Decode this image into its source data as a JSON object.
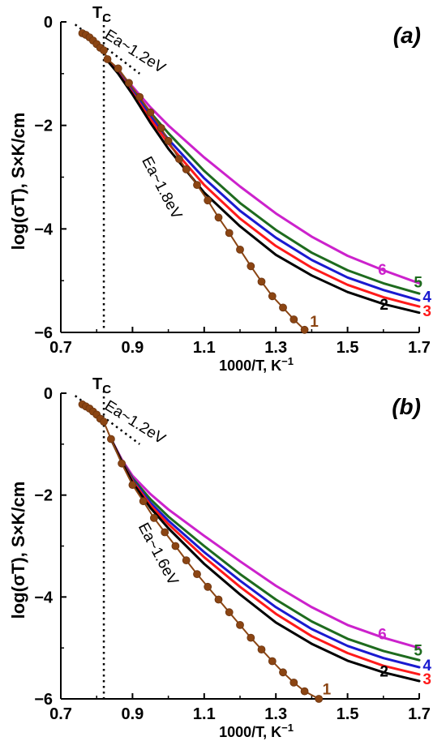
{
  "chart_data": [
    {
      "type": "line",
      "panel_label": "(a)",
      "xlabel": "1000/T, K",
      "xlabel_sup": "−1",
      "ylabel": "log(σT), S×K/cm",
      "xlim": [
        0.7,
        1.7
      ],
      "ylim": [
        -6,
        0
      ],
      "xticks": [
        "0.7",
        "0.9",
        "1.1",
        "1.3",
        "1.5",
        "1.7"
      ],
      "yticks": [
        "0",
        "−2",
        "−4",
        "−6"
      ],
      "tc_label": "T",
      "tc_sub": "C",
      "tc_x": 0.82,
      "annotations": [
        {
          "text": "Ea~1.2eV",
          "x": 0.9,
          "y": -0.65,
          "angle": 32
        },
        {
          "text": "Ea~1.8eV",
          "x": 0.97,
          "y": -3.25,
          "angle": 62
        }
      ],
      "ea_line": [
        [
          0.74,
          -0.05
        ],
        [
          0.92,
          -1.0
        ]
      ],
      "series": [
        {
          "name": "1",
          "color": "#8B4513",
          "markers": true,
          "x": [
            0.76,
            0.77,
            0.78,
            0.79,
            0.8,
            0.81,
            0.82,
            0.83,
            0.86,
            0.89,
            0.92,
            0.95,
            0.98,
            1.0,
            1.03,
            1.05,
            1.08,
            1.11,
            1.14,
            1.17,
            1.2,
            1.23,
            1.26,
            1.29,
            1.32,
            1.35,
            1.38
          ],
          "y": [
            -0.22,
            -0.25,
            -0.3,
            -0.36,
            -0.43,
            -0.5,
            -0.55,
            -0.72,
            -0.9,
            -1.18,
            -1.45,
            -1.75,
            -2.05,
            -2.3,
            -2.65,
            -2.85,
            -3.15,
            -3.45,
            -3.78,
            -4.08,
            -4.4,
            -4.72,
            -5.02,
            -5.3,
            -5.52,
            -5.75,
            -5.95
          ]
        },
        {
          "name": "2",
          "color": "#000000",
          "x": [
            0.83,
            0.86,
            0.9,
            0.95,
            1.0,
            1.1,
            1.2,
            1.3,
            1.4,
            1.5,
            1.6,
            1.7
          ],
          "y": [
            -0.75,
            -1.0,
            -1.4,
            -1.95,
            -2.45,
            -3.3,
            -3.95,
            -4.5,
            -4.9,
            -5.22,
            -5.45,
            -5.62
          ]
        },
        {
          "name": "3",
          "color": "#FF1A1A",
          "x": [
            0.83,
            0.86,
            0.9,
            0.95,
            1.0,
            1.1,
            1.2,
            1.3,
            1.4,
            1.5,
            1.6,
            1.7
          ],
          "y": [
            -0.75,
            -0.98,
            -1.37,
            -1.88,
            -2.35,
            -3.15,
            -3.8,
            -4.33,
            -4.75,
            -5.08,
            -5.32,
            -5.5
          ]
        },
        {
          "name": "4",
          "color": "#1A1AD0",
          "x": [
            0.83,
            0.86,
            0.9,
            0.95,
            1.0,
            1.1,
            1.2,
            1.3,
            1.4,
            1.5,
            1.6,
            1.7
          ],
          "y": [
            -0.75,
            -0.97,
            -1.34,
            -1.82,
            -2.27,
            -3.02,
            -3.65,
            -4.17,
            -4.6,
            -4.94,
            -5.18,
            -5.38
          ]
        },
        {
          "name": "5",
          "color": "#1E6B1E",
          "x": [
            0.83,
            0.86,
            0.9,
            0.95,
            1.0,
            1.1,
            1.2,
            1.3,
            1.4,
            1.5,
            1.6,
            1.7
          ],
          "y": [
            -0.75,
            -0.96,
            -1.3,
            -1.75,
            -2.15,
            -2.88,
            -3.5,
            -4.02,
            -4.46,
            -4.8,
            -5.05,
            -5.25
          ]
        },
        {
          "name": "6",
          "color": "#CC22CC",
          "x": [
            0.83,
            0.86,
            0.9,
            0.95,
            1.0,
            1.1,
            1.2,
            1.3,
            1.4,
            1.5,
            1.6,
            1.7
          ],
          "y": [
            -0.75,
            -0.95,
            -1.25,
            -1.65,
            -2.0,
            -2.62,
            -3.18,
            -3.7,
            -4.15,
            -4.52,
            -4.8,
            -5.05
          ]
        }
      ],
      "series_label_pos": [
        {
          "x": 1.395,
          "y": -5.78
        },
        {
          "x": 1.59,
          "y": -5.45
        },
        {
          "x": 1.71,
          "y": -5.58
        },
        {
          "x": 1.71,
          "y": -5.3
        },
        {
          "x": 1.685,
          "y": -5.02
        },
        {
          "x": 1.585,
          "y": -4.78
        }
      ]
    },
    {
      "type": "line",
      "panel_label": "(b)",
      "xlabel": "1000/T, K",
      "xlabel_sup": "−1",
      "ylabel": "log(σT), S×K/cm",
      "xlim": [
        0.7,
        1.7
      ],
      "ylim": [
        -6,
        0
      ],
      "xticks": [
        "0.7",
        "0.9",
        "1.1",
        "1.3",
        "1.5",
        "1.7"
      ],
      "yticks": [
        "0",
        "−2",
        "−4",
        "−6"
      ],
      "tc_label": "T",
      "tc_sub": "C",
      "tc_x": 0.82,
      "annotations": [
        {
          "text": "Ea~1.2eV",
          "x": 0.9,
          "y": -0.65,
          "angle": 32
        },
        {
          "text": "Ea~1.6eV",
          "x": 0.96,
          "y": -3.2,
          "angle": 62
        }
      ],
      "ea_line": [
        [
          0.74,
          -0.05
        ],
        [
          0.92,
          -1.0
        ]
      ],
      "series": [
        {
          "name": "1",
          "color": "#8B4513",
          "markers": true,
          "x": [
            0.76,
            0.77,
            0.78,
            0.79,
            0.8,
            0.81,
            0.82,
            0.84,
            0.87,
            0.9,
            0.93,
            0.96,
            0.99,
            1.02,
            1.05,
            1.08,
            1.11,
            1.14,
            1.17,
            1.2,
            1.23,
            1.26,
            1.29,
            1.32,
            1.35,
            1.38,
            1.42
          ],
          "y": [
            -0.22,
            -0.26,
            -0.3,
            -0.36,
            -0.42,
            -0.5,
            -0.56,
            -0.9,
            -1.38,
            -1.8,
            -2.12,
            -2.45,
            -2.73,
            -3.0,
            -3.28,
            -3.55,
            -3.8,
            -4.05,
            -4.3,
            -4.55,
            -4.8,
            -5.03,
            -5.26,
            -5.48,
            -5.68,
            -5.85,
            -6.0
          ]
        },
        {
          "name": "2",
          "color": "#000000",
          "x": [
            0.84,
            0.87,
            0.9,
            0.95,
            1.0,
            1.1,
            1.2,
            1.3,
            1.4,
            1.5,
            1.6,
            1.7
          ],
          "y": [
            -0.9,
            -1.35,
            -1.75,
            -2.25,
            -2.65,
            -3.35,
            -3.95,
            -4.5,
            -4.92,
            -5.25,
            -5.48,
            -5.65
          ]
        },
        {
          "name": "3",
          "color": "#FF1A1A",
          "x": [
            0.84,
            0.87,
            0.9,
            0.95,
            1.0,
            1.1,
            1.2,
            1.3,
            1.4,
            1.5,
            1.6,
            1.7
          ],
          "y": [
            -0.9,
            -1.34,
            -1.72,
            -2.2,
            -2.57,
            -3.22,
            -3.8,
            -4.33,
            -4.77,
            -5.1,
            -5.35,
            -5.52
          ]
        },
        {
          "name": "4",
          "color": "#1A1AD0",
          "x": [
            0.84,
            0.87,
            0.9,
            0.95,
            1.0,
            1.1,
            1.2,
            1.3,
            1.4,
            1.5,
            1.6,
            1.7
          ],
          "y": [
            -0.9,
            -1.33,
            -1.7,
            -2.15,
            -2.5,
            -3.12,
            -3.68,
            -4.2,
            -4.63,
            -4.96,
            -5.2,
            -5.38
          ]
        },
        {
          "name": "5",
          "color": "#1E6B1E",
          "x": [
            0.84,
            0.87,
            0.9,
            0.95,
            1.0,
            1.1,
            1.2,
            1.3,
            1.4,
            1.5,
            1.6,
            1.7
          ],
          "y": [
            -0.9,
            -1.32,
            -1.67,
            -2.08,
            -2.42,
            -3.0,
            -3.55,
            -4.05,
            -4.48,
            -4.82,
            -5.06,
            -5.24
          ]
        },
        {
          "name": "6",
          "color": "#CC22CC",
          "x": [
            0.84,
            0.87,
            0.9,
            0.95,
            1.0,
            1.1,
            1.2,
            1.3,
            1.4,
            1.5,
            1.6,
            1.7
          ],
          "y": [
            -0.9,
            -1.3,
            -1.62,
            -1.98,
            -2.28,
            -2.8,
            -3.3,
            -3.78,
            -4.2,
            -4.55,
            -4.8,
            -5.0
          ]
        }
      ],
      "series_label_pos": [
        {
          "x": 1.43,
          "y": -5.8
        },
        {
          "x": 1.59,
          "y": -5.45
        },
        {
          "x": 1.71,
          "y": -5.6
        },
        {
          "x": 1.71,
          "y": -5.33
        },
        {
          "x": 1.685,
          "y": -5.04
        },
        {
          "x": 1.585,
          "y": -4.72
        }
      ]
    }
  ]
}
